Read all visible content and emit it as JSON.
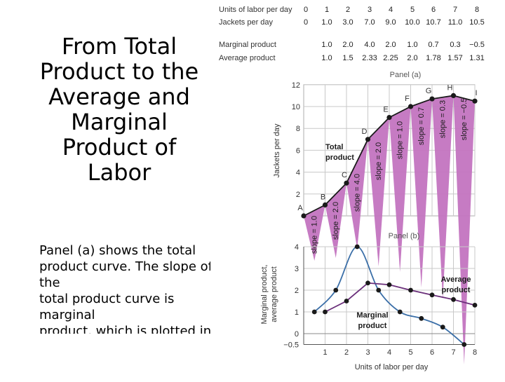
{
  "slide": {
    "title": "From Total\nProduct to the\nAverage and\nMarginal\nProduct of\nLabor",
    "body": "Panel (a) shows the total\nproduct curve. The slope of the\ntotal product curve is marginal\nproduct, which is plotted in\nPanel (b)."
  },
  "table": {
    "rows": [
      {
        "label": "Units of labor per day",
        "values": [
          "0",
          "1",
          "2",
          "3",
          "4",
          "5",
          "6",
          "7",
          "8"
        ]
      },
      {
        "label": "Jackets per day",
        "values": [
          "0",
          "1.0",
          "3.0",
          "7.0",
          "9.0",
          "10.0",
          "10.7",
          "11.0",
          "10.5"
        ]
      },
      {
        "label": "Marginal product",
        "values": [
          "1.0",
          "2.0",
          "4.0",
          "2.0",
          "1.0",
          "0.7",
          "0.3",
          "−0.5"
        ]
      },
      {
        "label": "Average product",
        "values": [
          "1.0",
          "1.5",
          "2.33",
          "2.25",
          "2.0",
          "1.78",
          "1.57",
          "1.31"
        ]
      }
    ]
  },
  "chart_data": [
    {
      "type": "line",
      "title": "Panel (a)",
      "ylabel": "Jackets per day",
      "ylim": [
        0,
        12
      ],
      "yticks": [
        "2",
        "4",
        "6",
        "8",
        "10",
        "12"
      ],
      "x": [
        0,
        1,
        2,
        3,
        4,
        5,
        6,
        7,
        8
      ],
      "series": [
        {
          "name": "Total product",
          "values": [
            0,
            1.0,
            3.0,
            7.0,
            9.0,
            10.0,
            10.7,
            11.0,
            10.5
          ]
        }
      ],
      "point_labels": [
        "A",
        "B",
        "C",
        "D",
        "E",
        "F",
        "G",
        "H",
        "I"
      ],
      "slope_labels": [
        "slope = 1.0",
        "slope = 2.0",
        "slope = 4.0",
        "slope = 2.0",
        "slope = 1.0",
        "slope = 0.7",
        "slope = 0.3",
        "slope = −0.5"
      ],
      "colors": {
        "curve": "#1a1a1a",
        "fill": "#c374c0",
        "grid": "#c8c8c8"
      }
    },
    {
      "type": "line",
      "title": "Panel (b)",
      "xlabel": "Units of labor per day",
      "ylabel": "Marginal product,\naverage product",
      "ylim": [
        -0.5,
        4
      ],
      "yticks": [
        "−0.5",
        "0",
        "1",
        "2",
        "3",
        "4"
      ],
      "xticks": [
        "1",
        "2",
        "3",
        "4",
        "5",
        "6",
        "7",
        "8"
      ],
      "series": [
        {
          "name": "Marginal product",
          "x": [
            0.5,
            1.5,
            2.5,
            3.5,
            4.5,
            5.5,
            6.5,
            7.5
          ],
          "values": [
            1.0,
            2.0,
            4.0,
            2.0,
            1.0,
            0.7,
            0.3,
            -0.5
          ]
        },
        {
          "name": "Average product",
          "x": [
            1,
            2,
            3,
            4,
            5,
            6,
            7,
            8
          ],
          "values": [
            1.0,
            1.5,
            2.33,
            2.25,
            2.0,
            1.78,
            1.57,
            1.31
          ]
        }
      ],
      "colors": {
        "marginal": "#3b6fa8",
        "average": "#6a2f7a",
        "points": "#1a1a1a"
      }
    }
  ]
}
